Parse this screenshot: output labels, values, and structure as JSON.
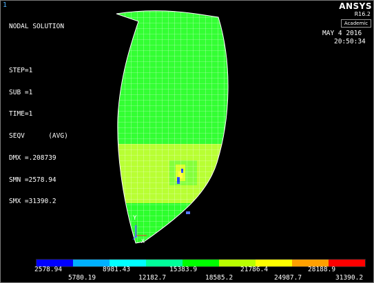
{
  "window": {
    "number": "1"
  },
  "brand": {
    "name": "ANSYS",
    "version": "R16.2",
    "edition": "Academic"
  },
  "solution_info": {
    "lines": [
      "NODAL SOLUTION",
      "",
      "STEP=1",
      "SUB =1",
      "TIME=1",
      "SEQV      (AVG)",
      "DMX =.208739",
      "SMN =2578.94",
      "SMX =31390.2"
    ]
  },
  "datetime": {
    "date": "MAY  4 2016",
    "time": "20:50:34"
  },
  "triad": {
    "y_label": "Y",
    "x_label": "X"
  },
  "legend": {
    "colors": [
      "#0000ff",
      "#00b0ff",
      "#00ffff",
      "#00ff9a",
      "#00ff00",
      "#b8ff00",
      "#ffff00",
      "#ffa000",
      "#ff0000"
    ],
    "top_labels": [
      "2578.94",
      "8981.43",
      "15383.9",
      "21786.4",
      "28188.9"
    ],
    "bottom_labels": [
      "5780.19",
      "12182.7",
      "18585.2",
      "24987.7",
      "31390.2"
    ]
  }
}
